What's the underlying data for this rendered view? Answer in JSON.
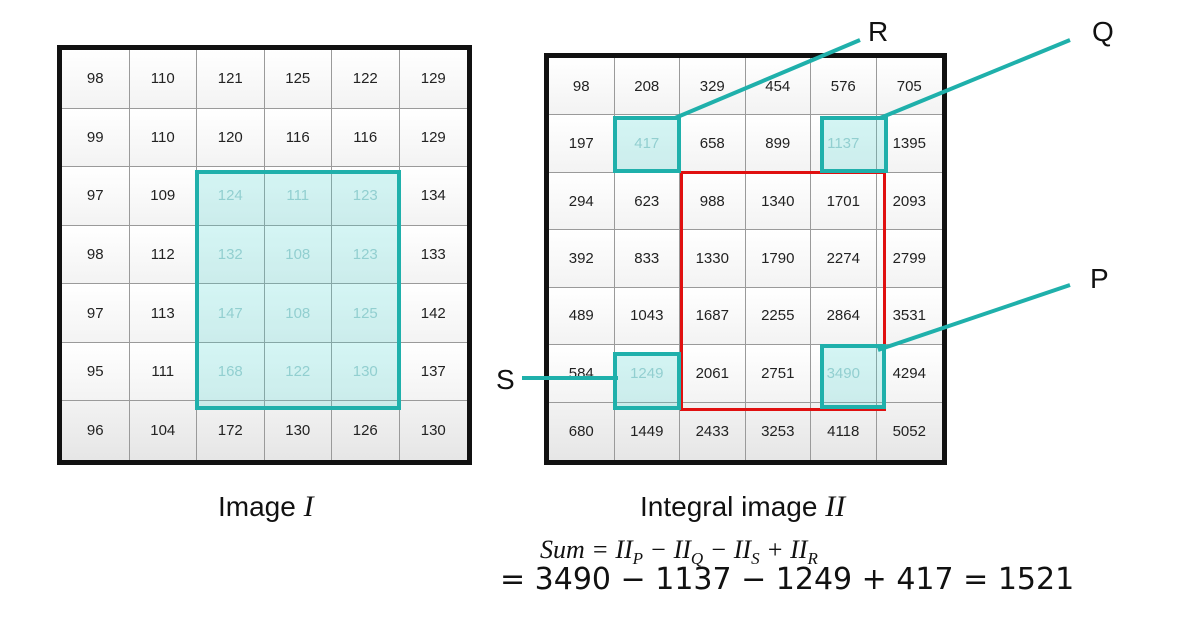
{
  "image_grid": {
    "rows": [
      [
        "98",
        "110",
        "121",
        "125",
        "122",
        "129"
      ],
      [
        "99",
        "110",
        "120",
        "116",
        "116",
        "129"
      ],
      [
        "97",
        "109",
        "124",
        "111",
        "123",
        "134"
      ],
      [
        "98",
        "112",
        "132",
        "108",
        "123",
        "133"
      ],
      [
        "97",
        "113",
        "147",
        "108",
        "125",
        "142"
      ],
      [
        "95",
        "111",
        "168",
        "122",
        "130",
        "137"
      ],
      [
        "96",
        "104",
        "172",
        "130",
        "126",
        "130"
      ]
    ],
    "caption_text": "Image",
    "caption_symbol": "I"
  },
  "integral_grid": {
    "rows": [
      [
        "98",
        "208",
        "329",
        "454",
        "576",
        "705"
      ],
      [
        "197",
        "417",
        "658",
        "899",
        "1137",
        "1395"
      ],
      [
        "294",
        "623",
        "988",
        "1340",
        "1701",
        "2093"
      ],
      [
        "392",
        "833",
        "1330",
        "1790",
        "2274",
        "2799"
      ],
      [
        "489",
        "1043",
        "1687",
        "2255",
        "2864",
        "3531"
      ],
      [
        "584",
        "1249",
        "2061",
        "2751",
        "3490",
        "4294"
      ],
      [
        "680",
        "1449",
        "2433",
        "3253",
        "4118",
        "5052"
      ]
    ],
    "caption_text": "Integral image",
    "caption_symbol": "II"
  },
  "corner_labels": {
    "p": "P",
    "q": "Q",
    "r": "R",
    "s": "S"
  },
  "formula": {
    "lhs": "Sum",
    "eq": "=",
    "t1": "II",
    "t1_sub": "P",
    "op1": "−",
    "t2": "II",
    "t2_sub": "Q",
    "op2": "−",
    "t3": "II",
    "t3_sub": "S",
    "op3": "+",
    "t4": "II",
    "t4_sub": "R"
  },
  "calculation": "= 3490 − 1137 − 1249 + 417 = 1521",
  "colors": {
    "highlight": "#1fb0ab",
    "region": "#e01010"
  }
}
